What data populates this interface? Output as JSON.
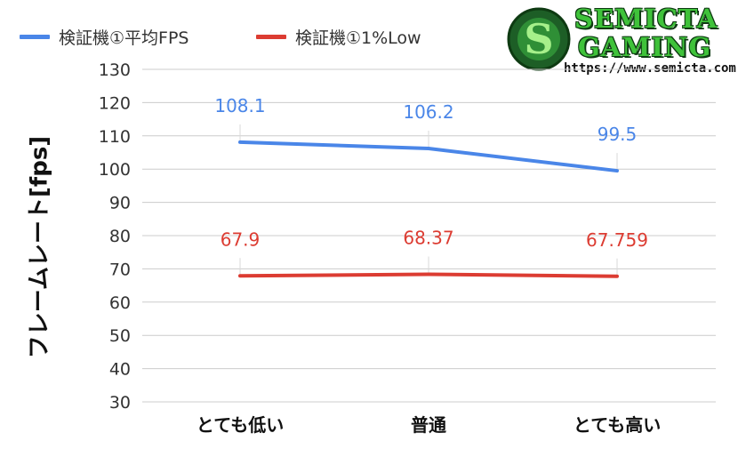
{
  "logo": {
    "line1": "SEMICTA",
    "line2": "GAMING",
    "url": "https://www.semicta.com"
  },
  "colors": {
    "series1": "#4a86e8",
    "series2": "#dc3c32",
    "grid": "#cccccc",
    "logo_green": "#3fc23a"
  },
  "chart_data": {
    "type": "line",
    "title": "",
    "xlabel": "",
    "ylabel": "フレームレート[fps]",
    "categories": [
      "とても低い",
      "普通",
      "とても高い"
    ],
    "ylim": [
      30,
      130
    ],
    "yticks": [
      30,
      40,
      50,
      60,
      70,
      80,
      90,
      100,
      110,
      120,
      130
    ],
    "grid": true,
    "legend_position": "top-left",
    "series": [
      {
        "name": "検証機①平均FPS",
        "values": [
          108.1,
          106.2,
          99.5
        ],
        "labels": [
          "108.1",
          "106.2",
          "99.5"
        ],
        "color": "#4a86e8"
      },
      {
        "name": "検証機①1%Low",
        "values": [
          67.9,
          68.37,
          67.759
        ],
        "labels": [
          "67.9",
          "68.37",
          "67.759"
        ],
        "color": "#dc3c32"
      }
    ]
  }
}
